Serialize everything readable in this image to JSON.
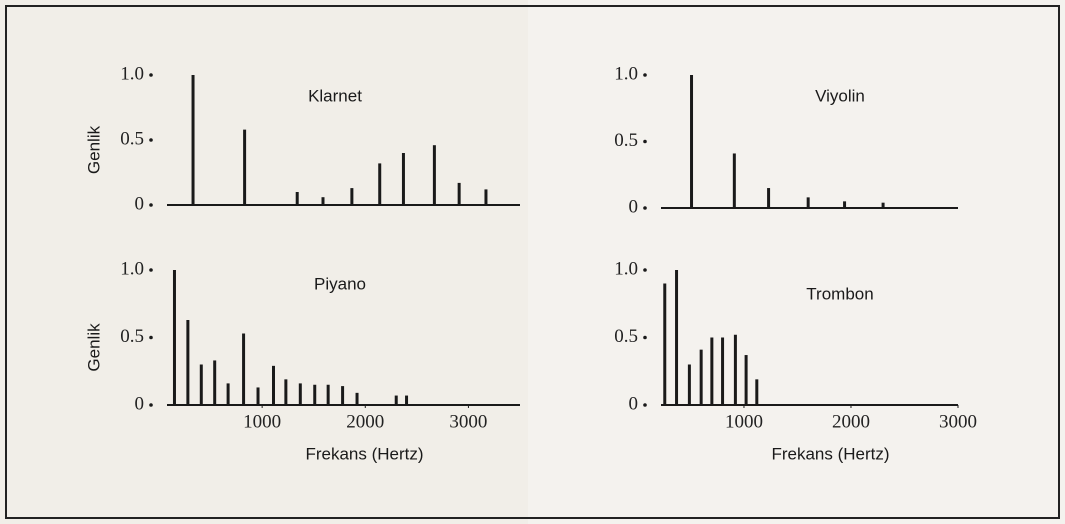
{
  "chart_data": [
    {
      "type": "stem",
      "title": "Klarnet",
      "ylabel": "Genlik",
      "x": [
        330,
        830,
        1340,
        1590,
        1870,
        2140,
        2370,
        2670,
        2910,
        3170
      ],
      "values": [
        1.0,
        0.58,
        0.1,
        0.06,
        0.13,
        0.32,
        0.4,
        0.46,
        0.17,
        0.12
      ],
      "xlim": [
        0,
        3500
      ],
      "ylim": [
        0,
        1
      ],
      "yticks": [
        0,
        0.5,
        {
          "value": 1,
          "label": "1.0"
        }
      ],
      "color": "#1a1a1a"
    },
    {
      "type": "stem",
      "title": "Viyolin",
      "x": [
        510,
        910,
        1230,
        1600,
        1940,
        2300
      ],
      "values": [
        1.0,
        0.41,
        0.15,
        0.08,
        0.05,
        0.04
      ],
      "xlim": [
        150,
        3000
      ],
      "ylim": [
        0,
        1
      ],
      "yticks": [
        0,
        0.5,
        {
          "value": 1,
          "label": "1.0"
        }
      ],
      "color": "#1a1a1a"
    },
    {
      "type": "stem",
      "title": "Piyano",
      "ylabel": "Genlik",
      "xlabel": "Frekans (Hertz)",
      "x": [
        150,
        280,
        410,
        540,
        670,
        820,
        960,
        1110,
        1230,
        1370,
        1510,
        1640,
        1780,
        1920,
        2300,
        2400
      ],
      "values": [
        1.0,
        0.63,
        0.3,
        0.33,
        0.16,
        0.53,
        0.13,
        0.29,
        0.19,
        0.16,
        0.15,
        0.15,
        0.14,
        0.09,
        0.07,
        0.07
      ],
      "xlim": [
        0,
        3500
      ],
      "ylim": [
        0,
        1
      ],
      "yticks": [
        0,
        0.5,
        {
          "value": 1,
          "label": "1.0"
        }
      ],
      "xticks": [
        1000,
        2000,
        3000
      ],
      "color": "#1a1a1a"
    },
    {
      "type": "stem",
      "title": "Trombon",
      "xlabel": "Frekans (Hertz)",
      "x": [
        260,
        370,
        490,
        600,
        700,
        800,
        920,
        1020,
        1120
      ],
      "values": [
        0.9,
        1.0,
        0.3,
        0.41,
        0.5,
        0.5,
        0.52,
        0.37,
        0.19
      ],
      "xlim": [
        150,
        3000
      ],
      "ylim": [
        0,
        1
      ],
      "yticks": [
        0,
        0.5,
        {
          "value": 1,
          "label": "1.0"
        }
      ],
      "xticks": [
        1000,
        2000,
        3000
      ],
      "color": "#1a1a1a"
    }
  ]
}
